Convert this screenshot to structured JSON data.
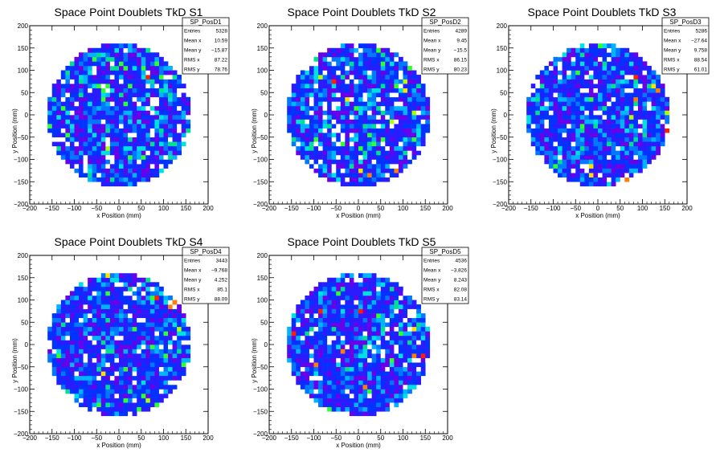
{
  "chart_data": [
    {
      "type": "heatmap",
      "title": "Space Point Doublets TkD S1",
      "xlabel": "x Position (mm)",
      "ylabel": "y Position (mm)",
      "xlim": [
        -200,
        200
      ],
      "ylim": [
        -200,
        200
      ],
      "xticks": [
        -200,
        -150,
        -100,
        -50,
        0,
        50,
        100,
        150,
        200
      ],
      "yticks": [
        -200,
        -150,
        -100,
        -50,
        0,
        50,
        100,
        150,
        200
      ],
      "bin_size_mm": 10,
      "filled_region_radius_mm": 160,
      "stats": {
        "name": "SP_PosD1",
        "rows": [
          {
            "key": "Entries",
            "value": "5328"
          },
          {
            "key": "Mean x",
            "value": "10.59"
          },
          {
            "key": "Mean y",
            "value": "−15.87"
          },
          {
            "key": "RMS x",
            "value": "87.22"
          },
          {
            "key": "RMS y",
            "value": "78.76"
          }
        ]
      }
    },
    {
      "type": "heatmap",
      "title": "Space Point Doublets TkD S2",
      "xlabel": "x Position (mm)",
      "ylabel": "y Position (mm)",
      "xlim": [
        -200,
        200
      ],
      "ylim": [
        -200,
        200
      ],
      "xticks": [
        -200,
        -150,
        -100,
        -50,
        0,
        50,
        100,
        150,
        200
      ],
      "yticks": [
        -200,
        -150,
        -100,
        -50,
        0,
        50,
        100,
        150,
        200
      ],
      "bin_size_mm": 10,
      "filled_region_radius_mm": 160,
      "stats": {
        "name": "SP_PosD2",
        "rows": [
          {
            "key": "Entries",
            "value": "4289"
          },
          {
            "key": "Mean x",
            "value": "9.45"
          },
          {
            "key": "Mean y",
            "value": "−15.5"
          },
          {
            "key": "RMS x",
            "value": "86.15"
          },
          {
            "key": "RMS y",
            "value": "80.23"
          }
        ]
      }
    },
    {
      "type": "heatmap",
      "title": "Space Point Doublets TkD S3",
      "xlabel": "x Position (mm)",
      "ylabel": "y Position (mm)",
      "xlim": [
        -200,
        200
      ],
      "ylim": [
        -200,
        200
      ],
      "xticks": [
        -200,
        -150,
        -100,
        -50,
        0,
        50,
        100,
        150,
        200
      ],
      "yticks": [
        -200,
        -150,
        -100,
        -50,
        0,
        50,
        100,
        150,
        200
      ],
      "bin_size_mm": 10,
      "filled_region_radius_mm": 160,
      "stats": {
        "name": "SP_PosD3",
        "rows": [
          {
            "key": "Entries",
            "value": "5286"
          },
          {
            "key": "Mean x",
            "value": "−27.64"
          },
          {
            "key": "Mean y",
            "value": "9.758"
          },
          {
            "key": "RMS x",
            "value": "88.54"
          },
          {
            "key": "RMS y",
            "value": "61.01"
          }
        ]
      }
    },
    {
      "type": "heatmap",
      "title": "Space Point Doublets TkD S4",
      "xlabel": "x Position (mm)",
      "ylabel": "y Position (mm)",
      "xlim": [
        -200,
        200
      ],
      "ylim": [
        -200,
        200
      ],
      "xticks": [
        -200,
        -150,
        -100,
        -50,
        0,
        50,
        100,
        150,
        200
      ],
      "yticks": [
        -200,
        -150,
        -100,
        -50,
        0,
        50,
        100,
        150,
        200
      ],
      "bin_size_mm": 10,
      "filled_region_radius_mm": 160,
      "stats": {
        "name": "SP_PosD4",
        "rows": [
          {
            "key": "Entries",
            "value": "3443"
          },
          {
            "key": "Mean x",
            "value": "−9.768"
          },
          {
            "key": "Mean y",
            "value": "4.252"
          },
          {
            "key": "RMS x",
            "value": "85.1"
          },
          {
            "key": "RMS y",
            "value": "88.09"
          }
        ]
      }
    },
    {
      "type": "heatmap",
      "title": "Space Point Doublets TkD S5",
      "xlabel": "x Position (mm)",
      "ylabel": "y Position (mm)",
      "xlim": [
        -200,
        200
      ],
      "ylim": [
        -200,
        200
      ],
      "xticks": [
        -200,
        -150,
        -100,
        -50,
        0,
        50,
        100,
        150,
        200
      ],
      "yticks": [
        -200,
        -150,
        -100,
        -50,
        0,
        50,
        100,
        150,
        200
      ],
      "bin_size_mm": 10,
      "filled_region_radius_mm": 160,
      "stats": {
        "name": "SP_PosD5",
        "rows": [
          {
            "key": "Entries",
            "value": "4536"
          },
          {
            "key": "Mean x",
            "value": "−3.826"
          },
          {
            "key": "Mean y",
            "value": "8.243"
          },
          {
            "key": "RMS x",
            "value": "82.08"
          },
          {
            "key": "RMS y",
            "value": "83.14"
          }
        ]
      }
    }
  ],
  "colors": {
    "palette": [
      "#6a00e8",
      "#2b1bff",
      "#0033ff",
      "#0078ff",
      "#00b4ff",
      "#00e0e0",
      "#00e090",
      "#30ff30",
      "#b0ff00",
      "#ffe000",
      "#ff8000",
      "#ff2000"
    ],
    "empty_bin": "#ffffff",
    "frame": "#000000"
  }
}
